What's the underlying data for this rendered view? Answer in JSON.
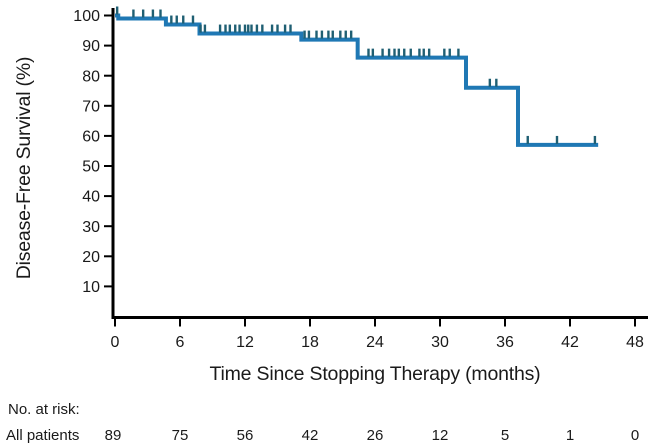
{
  "chart_data": {
    "type": "line",
    "subtype": "kaplan-meier-step",
    "title": "",
    "xlabel": "Time Since Stopping Therapy (months)",
    "ylabel": "Disease-Free Survival (%)",
    "xlim": [
      0,
      48
    ],
    "ylim": [
      0,
      100
    ],
    "xticks": [
      0,
      6,
      12,
      18,
      24,
      30,
      36,
      42,
      48
    ],
    "yticks": [
      10,
      20,
      30,
      40,
      50,
      60,
      70,
      80,
      90,
      100
    ],
    "grid": false,
    "legend_position": "none",
    "series": [
      {
        "name": "All patients",
        "color": "#1f78b4",
        "censor_color": "#1f5f73",
        "steps": [
          [
            0,
            100
          ],
          [
            0.3,
            99
          ],
          [
            4.7,
            97
          ],
          [
            7.8,
            94
          ],
          [
            17.2,
            92
          ],
          [
            22.4,
            86
          ],
          [
            32.4,
            76
          ],
          [
            37.2,
            57
          ]
        ],
        "end_time": 44.6,
        "censor_times": [
          0.2,
          1.7,
          2.6,
          3.5,
          4.2,
          5.2,
          5.7,
          6.3,
          7.2,
          7.9,
          8.3,
          9.7,
          10.2,
          10.6,
          11.1,
          11.5,
          12.0,
          12.3,
          12.6,
          13.1,
          13.6,
          14.5,
          15.0,
          15.7,
          16.2,
          17.5,
          17.9,
          18.6,
          19.1,
          19.7,
          20.1,
          20.8,
          21.3,
          21.8,
          23.4,
          23.8,
          24.7,
          25.3,
          25.8,
          26.2,
          26.7,
          27.3,
          28.1,
          28.5,
          29.0,
          30.4,
          30.9,
          31.7,
          34.6,
          35.2,
          38.1,
          40.8,
          44.3
        ]
      }
    ]
  },
  "risk_table": {
    "heading": "No. at risk:",
    "rows": [
      {
        "label": "All patients",
        "counts": [
          89,
          75,
          56,
          42,
          26,
          12,
          5,
          1,
          0
        ]
      }
    ]
  },
  "colors": {
    "curve": "#1f78b4",
    "censor": "#1f5f73",
    "axis": "#000000",
    "text": "#1a1a1a",
    "background": "#ffffff"
  }
}
